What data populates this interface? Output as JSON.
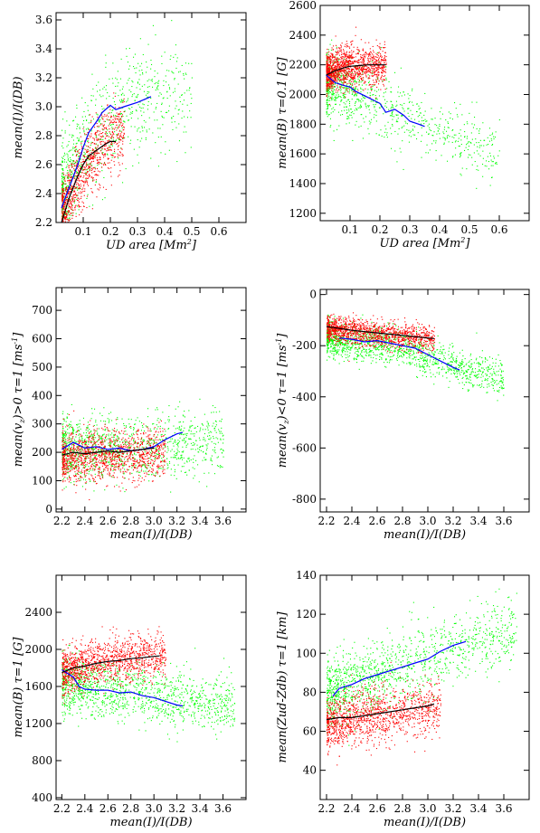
{
  "figure": {
    "colors": {
      "red_points": "#ff0000",
      "green_points": "#00ff00",
      "black_curve": "#000000",
      "blue_curve": "#0000ff"
    }
  },
  "chart_data": [
    {
      "type": "scatter",
      "xlabel": "UD area [Mm²]",
      "ylabel": "mean(I)/I(DB)",
      "xlim": [
        0.0,
        0.7
      ],
      "ylim": [
        2.2,
        3.65
      ],
      "xticks": [
        0.1,
        0.2,
        0.3,
        0.4,
        0.5,
        0.6
      ],
      "xtick_labels": [
        "0.1",
        "0.2",
        "0.3",
        "0.4",
        "0.5",
        "0.6"
      ],
      "yticks": [
        2.2,
        2.4,
        2.6,
        2.8,
        3.0,
        3.2,
        3.4,
        3.6
      ],
      "ytick_labels": [
        "2.2",
        "2.4",
        "2.6",
        "2.8",
        "3.0",
        "3.2",
        "3.4",
        "3.6"
      ],
      "clouds": [
        {
          "color": "green",
          "n": 900,
          "x_range": [
            0.02,
            0.5
          ],
          "x_skew": 2.2,
          "trend_x": [
            0.02,
            0.1,
            0.2,
            0.3,
            0.5
          ],
          "trend_y": [
            2.35,
            2.7,
            2.95,
            3.05,
            3.1
          ],
          "spread": 0.18
        },
        {
          "color": "red",
          "n": 1000,
          "x_range": [
            0.02,
            0.25
          ],
          "x_skew": 1.6,
          "trend_x": [
            0.02,
            0.08,
            0.15,
            0.22
          ],
          "trend_y": [
            2.25,
            2.5,
            2.7,
            2.8
          ],
          "spread": 0.12
        }
      ],
      "curves": [
        {
          "color": "blue",
          "x": [
            0.02,
            0.05,
            0.08,
            0.1,
            0.12,
            0.15,
            0.17,
            0.2,
            0.22,
            0.25,
            0.3,
            0.35
          ],
          "y": [
            2.3,
            2.45,
            2.6,
            2.72,
            2.82,
            2.9,
            2.96,
            3.01,
            2.98,
            3.0,
            3.03,
            3.07
          ]
        },
        {
          "color": "black",
          "x": [
            0.02,
            0.05,
            0.08,
            0.1,
            0.12,
            0.15,
            0.18,
            0.2,
            0.22
          ],
          "y": [
            2.2,
            2.38,
            2.52,
            2.6,
            2.66,
            2.7,
            2.74,
            2.76,
            2.76
          ]
        }
      ]
    },
    {
      "type": "scatter",
      "xlabel": "UD area [Mm²]",
      "ylabel": "mean(B) τ=0.1 [G]",
      "xlim": [
        0.0,
        0.7
      ],
      "ylim": [
        1150,
        2600
      ],
      "xticks": [
        0.1,
        0.2,
        0.3,
        0.4,
        0.5,
        0.6
      ],
      "xtick_labels": [
        "0.1",
        "0.2",
        "0.3",
        "0.4",
        "0.5",
        "0.6"
      ],
      "yticks": [
        1200,
        1400,
        1600,
        1800,
        2000,
        2200,
        2400,
        2600
      ],
      "ytick_labels": [
        "1200",
        "1400",
        "1600",
        "1800",
        "2000",
        "2200",
        "2400",
        "2600"
      ],
      "clouds": [
        {
          "color": "green",
          "n": 1000,
          "x_range": [
            0.02,
            0.6
          ],
          "x_skew": 2.2,
          "trend_x": [
            0.02,
            0.1,
            0.2,
            0.35,
            0.6
          ],
          "trend_y": [
            2080,
            2030,
            1930,
            1800,
            1600
          ],
          "spread": 110
        },
        {
          "color": "red",
          "n": 1300,
          "x_range": [
            0.02,
            0.22
          ],
          "x_skew": 1.6,
          "trend_x": [
            0.02,
            0.1,
            0.22
          ],
          "trend_y": [
            2150,
            2190,
            2200
          ],
          "spread": 70
        }
      ],
      "curves": [
        {
          "color": "blue",
          "x": [
            0.02,
            0.05,
            0.08,
            0.1,
            0.12,
            0.15,
            0.18,
            0.2,
            0.22,
            0.25,
            0.28,
            0.3,
            0.33,
            0.35
          ],
          "y": [
            2130,
            2080,
            2060,
            2050,
            2020,
            1990,
            1960,
            1940,
            1880,
            1900,
            1860,
            1820,
            1800,
            1785
          ]
        },
        {
          "color": "black",
          "x": [
            0.02,
            0.05,
            0.08,
            0.1,
            0.13,
            0.16,
            0.2,
            0.22
          ],
          "y": [
            2130,
            2160,
            2180,
            2190,
            2195,
            2200,
            2200,
            2200
          ]
        }
      ]
    },
    {
      "type": "scatter",
      "xlabel": "mean(I)/I(DB)",
      "ylabel": "mean(vz)>0 τ=1 [ms⁻¹]",
      "xlim": [
        2.15,
        3.8
      ],
      "ylim": [
        -10,
        780
      ],
      "xticks": [
        2.2,
        2.4,
        2.6,
        2.8,
        3.0,
        3.2,
        3.4,
        3.6
      ],
      "xtick_labels": [
        "2.2",
        "2.4",
        "2.6",
        "2.8",
        "3.0",
        "3.2",
        "3.4",
        "3.6"
      ],
      "yticks": [
        0,
        100,
        200,
        300,
        400,
        500,
        600,
        700
      ],
      "ytick_labels": [
        "0",
        "100",
        "200",
        "300",
        "400",
        "500",
        "600",
        "700"
      ],
      "clouds": [
        {
          "color": "green",
          "n": 1200,
          "x_range": [
            2.2,
            3.6
          ],
          "x_skew": 1.5,
          "trend_x": [
            2.2,
            3.0,
            3.6
          ],
          "trend_y": [
            215,
            215,
            250
          ],
          "spread": 55
        },
        {
          "color": "red",
          "n": 1300,
          "x_range": [
            2.2,
            3.1
          ],
          "x_skew": 1.3,
          "trend_x": [
            2.2,
            3.1
          ],
          "trend_y": [
            185,
            195
          ],
          "spread": 45
        }
      ],
      "curves": [
        {
          "color": "blue",
          "x": [
            2.2,
            2.3,
            2.4,
            2.5,
            2.6,
            2.7,
            2.8,
            2.9,
            3.0,
            3.1,
            3.2,
            3.25
          ],
          "y": [
            210,
            235,
            215,
            220,
            210,
            215,
            205,
            210,
            220,
            245,
            265,
            270
          ]
        },
        {
          "color": "black",
          "x": [
            2.2,
            2.3,
            2.4,
            2.5,
            2.6,
            2.7,
            2.8,
            2.9,
            3.0
          ],
          "y": [
            190,
            200,
            195,
            200,
            205,
            200,
            205,
            210,
            215
          ]
        }
      ]
    },
    {
      "type": "scatter",
      "xlabel": "mean(I)/I(DB)",
      "ylabel": "mean(vz)<0 τ=1 [ms⁻¹]",
      "xlim": [
        2.15,
        3.8
      ],
      "ylim": [
        -850,
        20
      ],
      "xticks": [
        2.2,
        2.4,
        2.6,
        2.8,
        3.0,
        3.2,
        3.4,
        3.6
      ],
      "xtick_labels": [
        "2.2",
        "2.4",
        "2.6",
        "2.8",
        "3.0",
        "3.2",
        "3.4",
        "3.6"
      ],
      "yticks": [
        0,
        -200,
        -400,
        -600,
        -800
      ],
      "ytick_labels": [
        "0",
        "-200",
        "-400",
        "-600",
        "-800"
      ],
      "clouds": [
        {
          "color": "green",
          "n": 1400,
          "x_range": [
            2.2,
            3.6
          ],
          "x_skew": 1.5,
          "trend_x": [
            2.2,
            2.8,
            3.3,
            3.6
          ],
          "trend_y": [
            -175,
            -205,
            -290,
            -320
          ],
          "spread": 35
        },
        {
          "color": "red",
          "n": 1300,
          "x_range": [
            2.2,
            3.05
          ],
          "x_skew": 1.3,
          "trend_x": [
            2.2,
            3.05
          ],
          "trend_y": [
            -130,
            -175
          ],
          "spread": 25
        }
      ],
      "curves": [
        {
          "color": "blue",
          "x": [
            2.3,
            2.4,
            2.5,
            2.6,
            2.7,
            2.8,
            2.9,
            3.0,
            3.1,
            3.2,
            3.25
          ],
          "y": [
            -170,
            -175,
            -185,
            -180,
            -190,
            -200,
            -210,
            -235,
            -260,
            -285,
            -295
          ]
        },
        {
          "color": "black",
          "x": [
            2.2,
            2.4,
            2.6,
            2.8,
            3.0,
            3.05
          ],
          "y": [
            -125,
            -140,
            -150,
            -160,
            -170,
            -172
          ]
        }
      ]
    },
    {
      "type": "scatter",
      "xlabel": "mean(I)/I(DB)",
      "ylabel": "mean(B) τ=1 [G]",
      "xlim": [
        2.15,
        3.8
      ],
      "ylim": [
        380,
        2800
      ],
      "xticks": [
        2.2,
        2.4,
        2.6,
        2.8,
        3.0,
        3.2,
        3.4,
        3.6
      ],
      "xtick_labels": [
        "2.2",
        "2.4",
        "2.6",
        "2.8",
        "3.0",
        "3.2",
        "3.4",
        "3.6"
      ],
      "yticks": [
        400,
        800,
        1200,
        1600,
        2000,
        2400
      ],
      "ytick_labels": [
        "400",
        "800",
        "1200",
        "1600",
        "2000",
        "2400"
      ],
      "clouds": [
        {
          "color": "green",
          "n": 1300,
          "x_range": [
            2.2,
            3.7
          ],
          "x_skew": 1.5,
          "trend_x": [
            2.2,
            2.8,
            3.3,
            3.7
          ],
          "trend_y": [
            1620,
            1550,
            1450,
            1400
          ],
          "spread": 150
        },
        {
          "color": "red",
          "n": 1300,
          "x_range": [
            2.2,
            3.1
          ],
          "x_skew": 1.3,
          "trend_x": [
            2.2,
            2.6,
            3.1
          ],
          "trend_y": [
            1780,
            1880,
            1930
          ],
          "spread": 120
        }
      ],
      "curves": [
        {
          "color": "blue",
          "x": [
            2.2,
            2.3,
            2.35,
            2.4,
            2.5,
            2.6,
            2.7,
            2.8,
            2.9,
            3.0,
            3.1,
            3.2,
            3.25
          ],
          "y": [
            1780,
            1700,
            1600,
            1570,
            1560,
            1560,
            1530,
            1540,
            1500,
            1480,
            1440,
            1400,
            1390
          ]
        },
        {
          "color": "black",
          "x": [
            2.2,
            2.3,
            2.4,
            2.5,
            2.6,
            2.7,
            2.8,
            2.9,
            3.0,
            3.05
          ],
          "y": [
            1750,
            1800,
            1820,
            1850,
            1870,
            1880,
            1900,
            1910,
            1925,
            1930
          ]
        }
      ]
    },
    {
      "type": "scatter",
      "xlabel": "mean(I)/I(DB)",
      "ylabel": "mean(Zud-Zdb) τ=1 [km]",
      "xlim": [
        2.15,
        3.8
      ],
      "ylim": [
        25,
        140
      ],
      "xticks": [
        2.2,
        2.4,
        2.6,
        2.8,
        3.0,
        3.2,
        3.4,
        3.6
      ],
      "xtick_labels": [
        "2.2",
        "2.4",
        "2.6",
        "2.8",
        "3.0",
        "3.2",
        "3.4",
        "3.6"
      ],
      "yticks": [
        40,
        60,
        80,
        100,
        120,
        140
      ],
      "ytick_labels": [
        "40",
        "60",
        "80",
        "100",
        "120",
        "140"
      ],
      "clouds": [
        {
          "color": "green",
          "n": 1300,
          "x_range": [
            2.2,
            3.7
          ],
          "x_skew": 1.5,
          "trend_x": [
            2.2,
            2.8,
            3.3,
            3.7
          ],
          "trend_y": [
            80,
            92,
            105,
            112
          ],
          "spread": 9
        },
        {
          "color": "red",
          "n": 1300,
          "x_range": [
            2.2,
            3.1
          ],
          "x_skew": 1.3,
          "trend_x": [
            2.2,
            3.1
          ],
          "trend_y": [
            64,
            73
          ],
          "spread": 7
        }
      ],
      "curves": [
        {
          "color": "blue",
          "x": [
            2.25,
            2.3,
            2.4,
            2.5,
            2.6,
            2.7,
            2.8,
            2.9,
            3.0,
            3.1,
            3.2,
            3.3
          ],
          "y": [
            78,
            82,
            84,
            87,
            89,
            91,
            93,
            95,
            97,
            101,
            104,
            106
          ]
        },
        {
          "color": "black",
          "x": [
            2.2,
            2.3,
            2.4,
            2.5,
            2.6,
            2.7,
            2.8,
            2.9,
            3.0,
            3.05
          ],
          "y": [
            66,
            67,
            67,
            68,
            69,
            70,
            71,
            72,
            73,
            74
          ]
        }
      ]
    }
  ]
}
